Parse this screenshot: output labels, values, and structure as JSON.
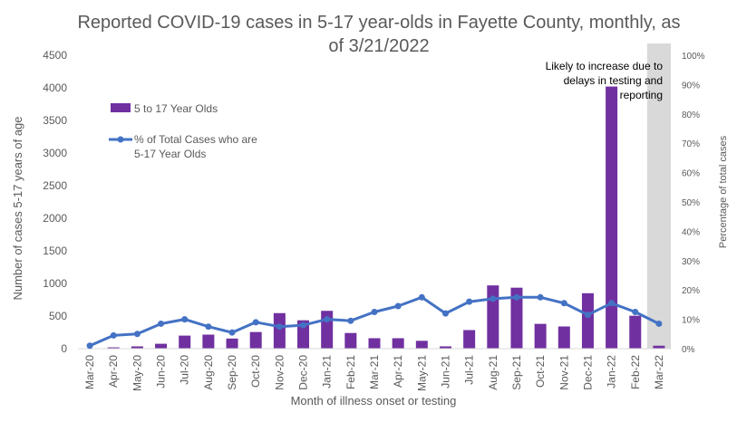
{
  "chart_data": {
    "type": "bar",
    "title_lines": [
      "Reported COVID-19 cases in 5-17 year-olds in Fayette County, monthly, as",
      "of 3/21/2022"
    ],
    "xlabel": "Month of illness onset or testing",
    "ylabel": "Number of cases 5-17 years of age",
    "y2label": "Percentage of total cases",
    "categories": [
      "Mar-20",
      "Apr-20",
      "May-20",
      "Jun-20",
      "Jul-20",
      "Aug-20",
      "Sep-20",
      "Oct-20",
      "Nov-20",
      "Dec-20",
      "Jan-21",
      "Feb-21",
      "Mar-21",
      "Apr-21",
      "May-21",
      "Jun-21",
      "Jul-21",
      "Aug-21",
      "Sep-21",
      "Oct-21",
      "Nov-21",
      "Dec-21",
      "Jan-22",
      "Feb-22",
      "Mar-22"
    ],
    "ylim": [
      0,
      4500
    ],
    "yticks": [
      "0",
      "500",
      "1000",
      "1500",
      "2000",
      "2500",
      "3000",
      "3500",
      "4000",
      "4500"
    ],
    "y2lim": [
      0,
      100
    ],
    "y2ticks": [
      "0%",
      "10%",
      "20%",
      "30%",
      "40%",
      "50%",
      "60%",
      "70%",
      "80%",
      "90%",
      "100%"
    ],
    "series": [
      {
        "name": "5 to 17 Year Olds",
        "type": "bar",
        "axis": "left",
        "color": "#7030a0",
        "values": [
          5,
          20,
          35,
          75,
          200,
          215,
          155,
          255,
          545,
          435,
          580,
          240,
          160,
          160,
          120,
          35,
          285,
          970,
          935,
          380,
          340,
          850,
          4020,
          505,
          45
        ]
      },
      {
        "name": "% of Total Cases who are 5-17 Year Olds",
        "legend_lines": [
          "% of Total Cases who are",
          "5-17 Year Olds"
        ],
        "type": "line",
        "axis": "right",
        "color": "#4472c4",
        "values": [
          1,
          4.5,
          5,
          8.5,
          10,
          7.5,
          5.5,
          9,
          7.5,
          8,
          10,
          9.5,
          12.5,
          14.5,
          17.5,
          12,
          16,
          17,
          17.5,
          17.5,
          15.5,
          11.5,
          15.5,
          12.5,
          8.5
        ]
      }
    ],
    "shaded_region": {
      "category": "Mar-22",
      "color": "#d9d9d9"
    },
    "annotation_lines": [
      "Likely to increase due to",
      "delays in testing and",
      "reporting"
    ],
    "grid": false,
    "legend_position": "upper-left"
  }
}
